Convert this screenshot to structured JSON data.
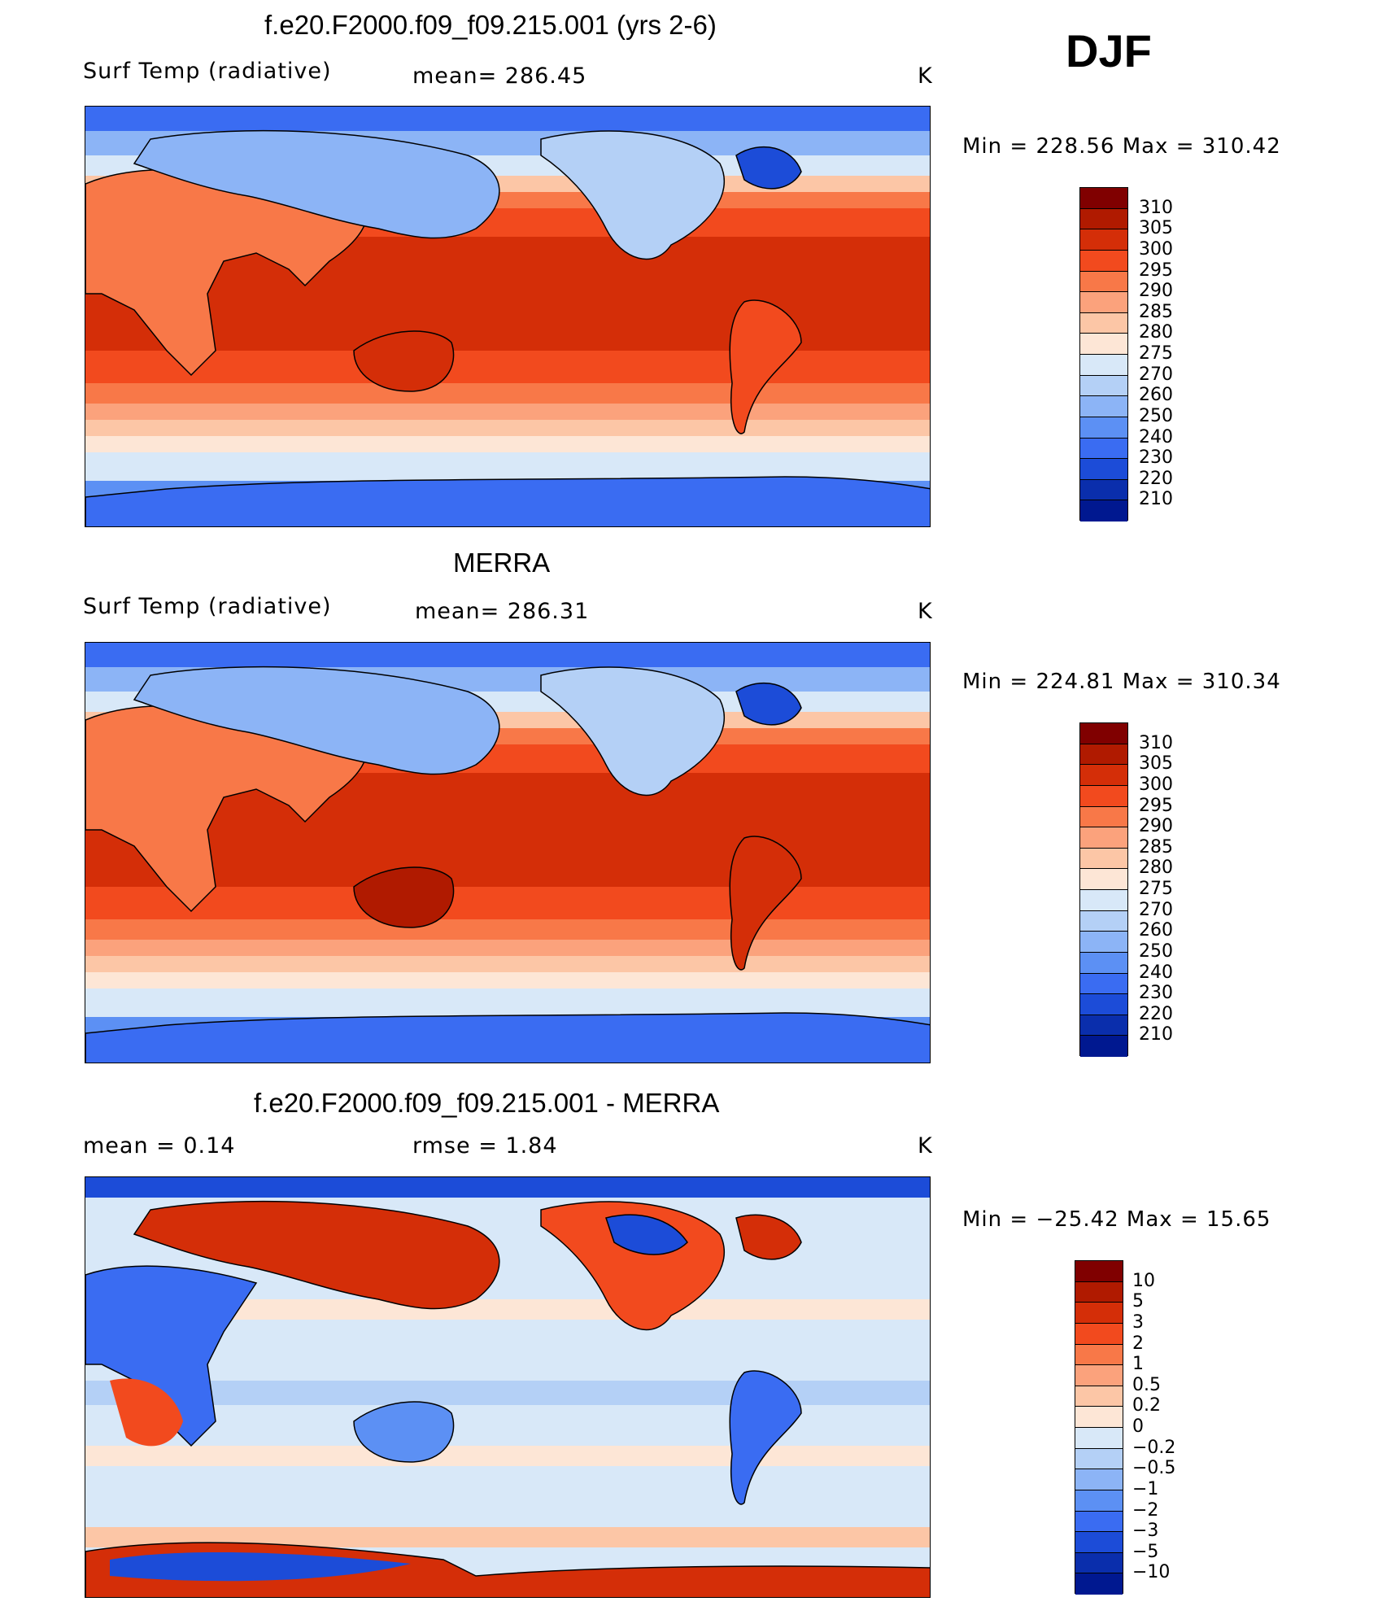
{
  "season": "DJF",
  "units": "K",
  "panels": [
    {
      "title": "f.e20.F2000.f09_f09.215.001 (yrs 2-6)",
      "variable": "Surf Temp (radiative)",
      "stat": "mean=  286.45",
      "minmax": "Min  =  228.56  Max  =  310.42",
      "colorbar_labels": [
        "310",
        "305",
        "300",
        "295",
        "290",
        "285",
        "280",
        "275",
        "270",
        "260",
        "250",
        "240",
        "230",
        "220",
        "210"
      ]
    },
    {
      "title": "MERRA",
      "variable": "Surf Temp (radiative)",
      "stat": "mean=  286.31",
      "minmax": "Min  =  224.81  Max  =  310.34",
      "colorbar_labels": [
        "310",
        "305",
        "300",
        "295",
        "290",
        "285",
        "280",
        "275",
        "270",
        "260",
        "250",
        "240",
        "230",
        "220",
        "210"
      ]
    },
    {
      "title": "f.e20.F2000.f09_f09.215.001 - MERRA",
      "variable": "mean  =      0.14",
      "stat": "rmse  =      1.84",
      "minmax": "Min  =  −25.42  Max  =     15.65",
      "colorbar_labels": [
        "10",
        "5",
        "3",
        "2",
        "1",
        "0.5",
        "0.2",
        "0",
        "−0.2",
        "−0.5",
        "−1",
        "−2",
        "−3",
        "−5",
        "−10"
      ]
    }
  ],
  "colors": {
    "abs_scale": [
      "#800000",
      "#b01a00",
      "#d42e08",
      "#f24a1e",
      "#f87848",
      "#fba27c",
      "#fcc6a6",
      "#fde6d6",
      "#d8e8f8",
      "#b4d0f6",
      "#8cb4f6",
      "#5c90f4",
      "#3a6cf2",
      "#1c4cd8",
      "#0a2eac",
      "#001890"
    ],
    "diff_scale": [
      "#800000",
      "#b01a00",
      "#d42e08",
      "#f24a1e",
      "#f87848",
      "#fba27c",
      "#fcc6a6",
      "#fde6d6",
      "#d8e8f8",
      "#b4d0f6",
      "#8cb4f6",
      "#5c90f4",
      "#3a6cf2",
      "#1c4cd8",
      "#0a2eac",
      "#001890"
    ],
    "coastline": "#000000"
  }
}
